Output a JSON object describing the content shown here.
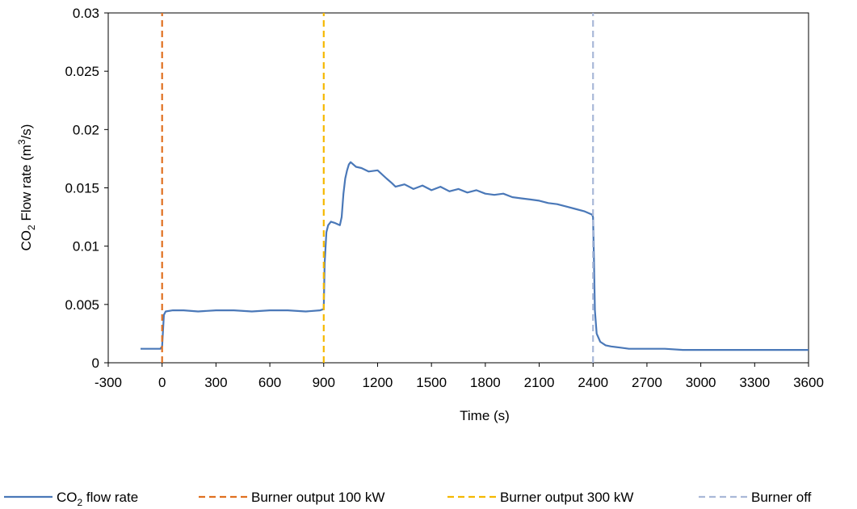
{
  "chart_data": {
    "type": "line",
    "xlabel": "Time (s)",
    "ylabel_main": "CO",
    "ylabel_sub": "2",
    "ylabel_rest": " Flow rate (m",
    "ylabel_sup": "3",
    "ylabel_end": "/s)",
    "xlim": [
      -300,
      3600
    ],
    "ylim": [
      0,
      0.03
    ],
    "xticks": [
      -300,
      0,
      300,
      600,
      900,
      1200,
      1500,
      1800,
      2100,
      2400,
      2700,
      3000,
      3300,
      3600
    ],
    "xtick_labels": [
      "-300",
      "0",
      "300",
      "600",
      "900",
      "1200",
      "1500",
      "1800",
      "2100",
      "2400",
      "2700",
      "3000",
      "3300",
      "3600"
    ],
    "yticks": [
      0,
      0.005,
      0.01,
      0.015,
      0.02,
      0.025,
      0.03
    ],
    "ytick_labels": [
      "0",
      "0.005",
      "0.01",
      "0.015",
      "0.02",
      "0.025",
      "0.03"
    ],
    "grid": false,
    "legend_position": "bottom",
    "series": [
      {
        "name_main": "CO",
        "name_sub": "2",
        "name_rest": " flow rate",
        "color": "#4a78b8",
        "style": "solid",
        "x": [
          -120,
          -10,
          0,
          10,
          20,
          60,
          120,
          200,
          300,
          400,
          500,
          600,
          700,
          800,
          880,
          900,
          905,
          915,
          925,
          940,
          960,
          990,
          1000,
          1010,
          1020,
          1030,
          1040,
          1050,
          1080,
          1110,
          1150,
          1200,
          1250,
          1280,
          1300,
          1350,
          1400,
          1450,
          1500,
          1550,
          1600,
          1650,
          1700,
          1750,
          1800,
          1850,
          1900,
          1950,
          2000,
          2050,
          2100,
          2150,
          2200,
          2250,
          2300,
          2350,
          2380,
          2395,
          2400,
          2405,
          2410,
          2420,
          2440,
          2470,
          2500,
          2550,
          2600,
          2700,
          2800,
          2900,
          3000,
          3100,
          3200,
          3300,
          3400,
          3500,
          3600
        ],
        "y": [
          0.0012,
          0.0012,
          0.0014,
          0.0041,
          0.0044,
          0.0045,
          0.0045,
          0.0044,
          0.0045,
          0.0045,
          0.0044,
          0.0045,
          0.0045,
          0.0044,
          0.0045,
          0.0046,
          0.0085,
          0.0112,
          0.0118,
          0.0121,
          0.012,
          0.0118,
          0.0125,
          0.0145,
          0.0158,
          0.0165,
          0.017,
          0.0172,
          0.0168,
          0.0167,
          0.0164,
          0.0165,
          0.0158,
          0.0154,
          0.0151,
          0.0153,
          0.0149,
          0.0152,
          0.0148,
          0.0151,
          0.0147,
          0.0149,
          0.0146,
          0.0148,
          0.0145,
          0.0144,
          0.0145,
          0.0142,
          0.0141,
          0.014,
          0.0139,
          0.0137,
          0.0136,
          0.0134,
          0.0132,
          0.013,
          0.0128,
          0.0127,
          0.0125,
          0.009,
          0.0045,
          0.0025,
          0.0018,
          0.0015,
          0.0014,
          0.0013,
          0.0012,
          0.0012,
          0.0012,
          0.0011,
          0.0011,
          0.0011,
          0.0011,
          0.0011,
          0.0011,
          0.0011,
          0.0011
        ]
      },
      {
        "name": "Burner output 100 kW",
        "color": "#e07020",
        "style": "dashed",
        "x": [
          0,
          0
        ],
        "y": [
          0,
          0.03
        ]
      },
      {
        "name": "Burner output 300 kW",
        "color": "#f5b800",
        "style": "dashed",
        "x": [
          900,
          900
        ],
        "y": [
          0,
          0.03
        ]
      },
      {
        "name": "Burner off",
        "color": "#a9b8d8",
        "style": "dashed",
        "x": [
          2400,
          2400
        ],
        "y": [
          0,
          0.03
        ]
      }
    ]
  }
}
